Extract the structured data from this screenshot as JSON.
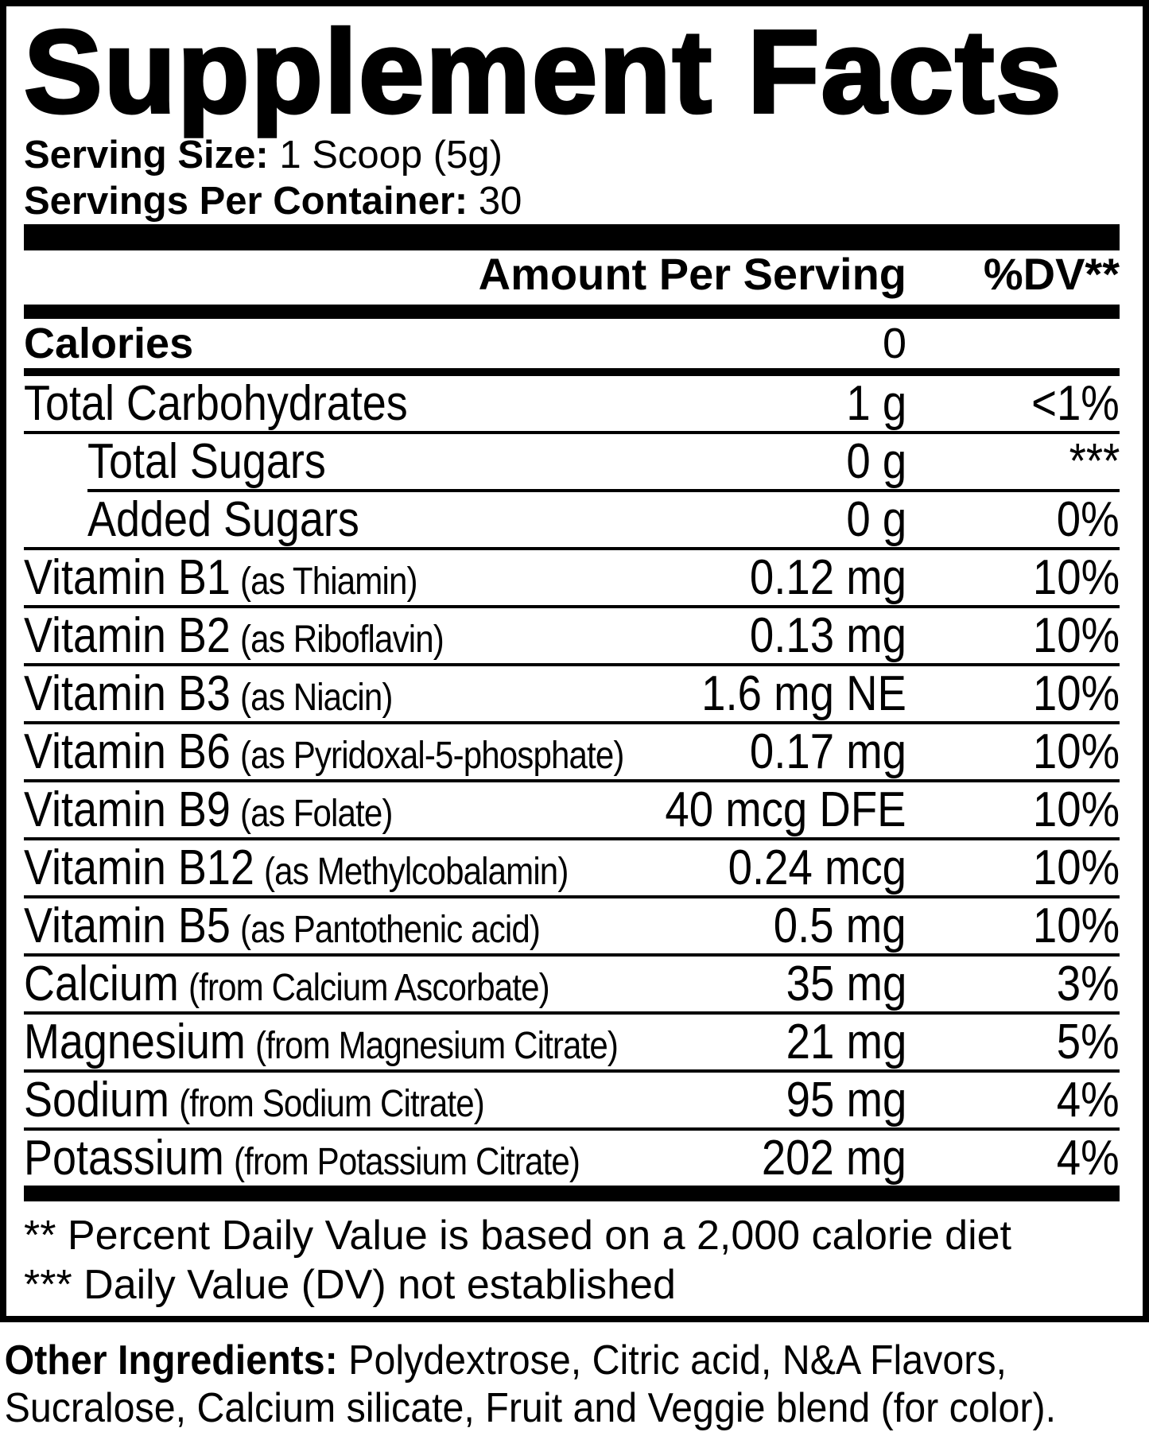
{
  "colors": {
    "ink": "#000000",
    "background": "#ffffff"
  },
  "title": "Supplement Facts",
  "serving": {
    "size_label": "Serving Size:",
    "size_value": "1 Scoop (5g)",
    "count_label": "Servings Per Container:",
    "count_value": "30"
  },
  "columns": {
    "amount": "Amount Per Serving",
    "dv": "%DV**"
  },
  "calories": {
    "name": "Calories",
    "amount": "0",
    "dv": ""
  },
  "rows": [
    {
      "name": "Total Carbohydrates",
      "paren": "",
      "amount": "1 g",
      "dv": "<1%"
    },
    {
      "name": "Total Sugars",
      "paren": "",
      "amount": "0 g",
      "dv": "***"
    },
    {
      "name": "Added Sugars",
      "paren": "",
      "amount": "0 g",
      "dv": "0%"
    },
    {
      "name": "Vitamin B1",
      "paren": "(as Thiamin)",
      "amount": "0.12 mg",
      "dv": "10%"
    },
    {
      "name": "Vitamin B2",
      "paren": "(as Riboflavin)",
      "amount": "0.13 mg",
      "dv": "10%"
    },
    {
      "name": "Vitamin B3",
      "paren": "(as Niacin)",
      "amount": "1.6 mg NE",
      "dv": "10%"
    },
    {
      "name": "Vitamin B6",
      "paren": "(as Pyridoxal-5-phosphate)",
      "amount": "0.17 mg",
      "dv": "10%"
    },
    {
      "name": "Vitamin B9",
      "paren": "(as Folate)",
      "amount": "40 mcg DFE",
      "dv": "10%"
    },
    {
      "name": "Vitamin B12",
      "paren": "(as Methylcobalamin)",
      "amount": "0.24 mcg",
      "dv": "10%"
    },
    {
      "name": "Vitamin B5",
      "paren": "(as Pantothenic acid)",
      "amount": "0.5 mg",
      "dv": "10%"
    },
    {
      "name": "Calcium",
      "paren": "(from Calcium Ascorbate)",
      "amount": "35 mg",
      "dv": "3%"
    },
    {
      "name": "Magnesium",
      "paren": "(from Magnesium Citrate)",
      "amount": "21 mg",
      "dv": "5%"
    },
    {
      "name": "Sodium",
      "paren": "(from Sodium Citrate)",
      "amount": "95 mg",
      "dv": "4%"
    },
    {
      "name": "Potassium",
      "paren": "(from Potassium Citrate)",
      "amount": "202 mg",
      "dv": "4%"
    }
  ],
  "footnotes": [
    "** Percent Daily Value is based on a 2,000 calorie diet",
    "*** Daily Value (DV) not established"
  ],
  "other_ingredients": {
    "label": "Other Ingredients:",
    "text": " Polydextrose, Citric acid, N&A Flavors, Sucralose, Calcium silicate, Fruit and Veggie blend (for color)."
  }
}
